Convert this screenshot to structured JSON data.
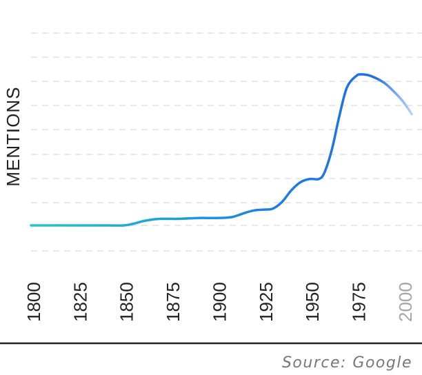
{
  "chart_data": {
    "type": "line",
    "ylabel": "MENTIONS",
    "xlabel": "",
    "source": "Source: Google",
    "x_ticks": [
      "1800",
      "1825",
      "1850",
      "1875",
      "1900",
      "1925",
      "1950",
      "1975",
      "2000"
    ],
    "faded_ticks": [
      "2000"
    ],
    "xlim": [
      1800,
      2006
    ],
    "ylim": [
      0,
      10
    ],
    "grid": true,
    "series": [
      {
        "x": [
          1800,
          1820,
          1840,
          1850,
          1855,
          1860,
          1865,
          1870,
          1880,
          1890,
          1900,
          1908,
          1915,
          1920,
          1925,
          1930,
          1935,
          1940,
          1945,
          1950,
          1955,
          1958,
          1962,
          1966,
          1970,
          1975,
          1978,
          1983,
          1990,
          1995,
          2000,
          2005
        ],
        "y": [
          0.0,
          0.0,
          0.0,
          0.0,
          0.1,
          0.25,
          0.35,
          0.4,
          0.4,
          0.45,
          0.45,
          0.5,
          0.75,
          0.9,
          0.95,
          1.0,
          1.4,
          2.1,
          2.6,
          2.8,
          2.8,
          3.2,
          4.6,
          6.6,
          8.3,
          9.0,
          9.1,
          9.0,
          8.6,
          8.1,
          7.5,
          6.7
        ]
      }
    ]
  }
}
